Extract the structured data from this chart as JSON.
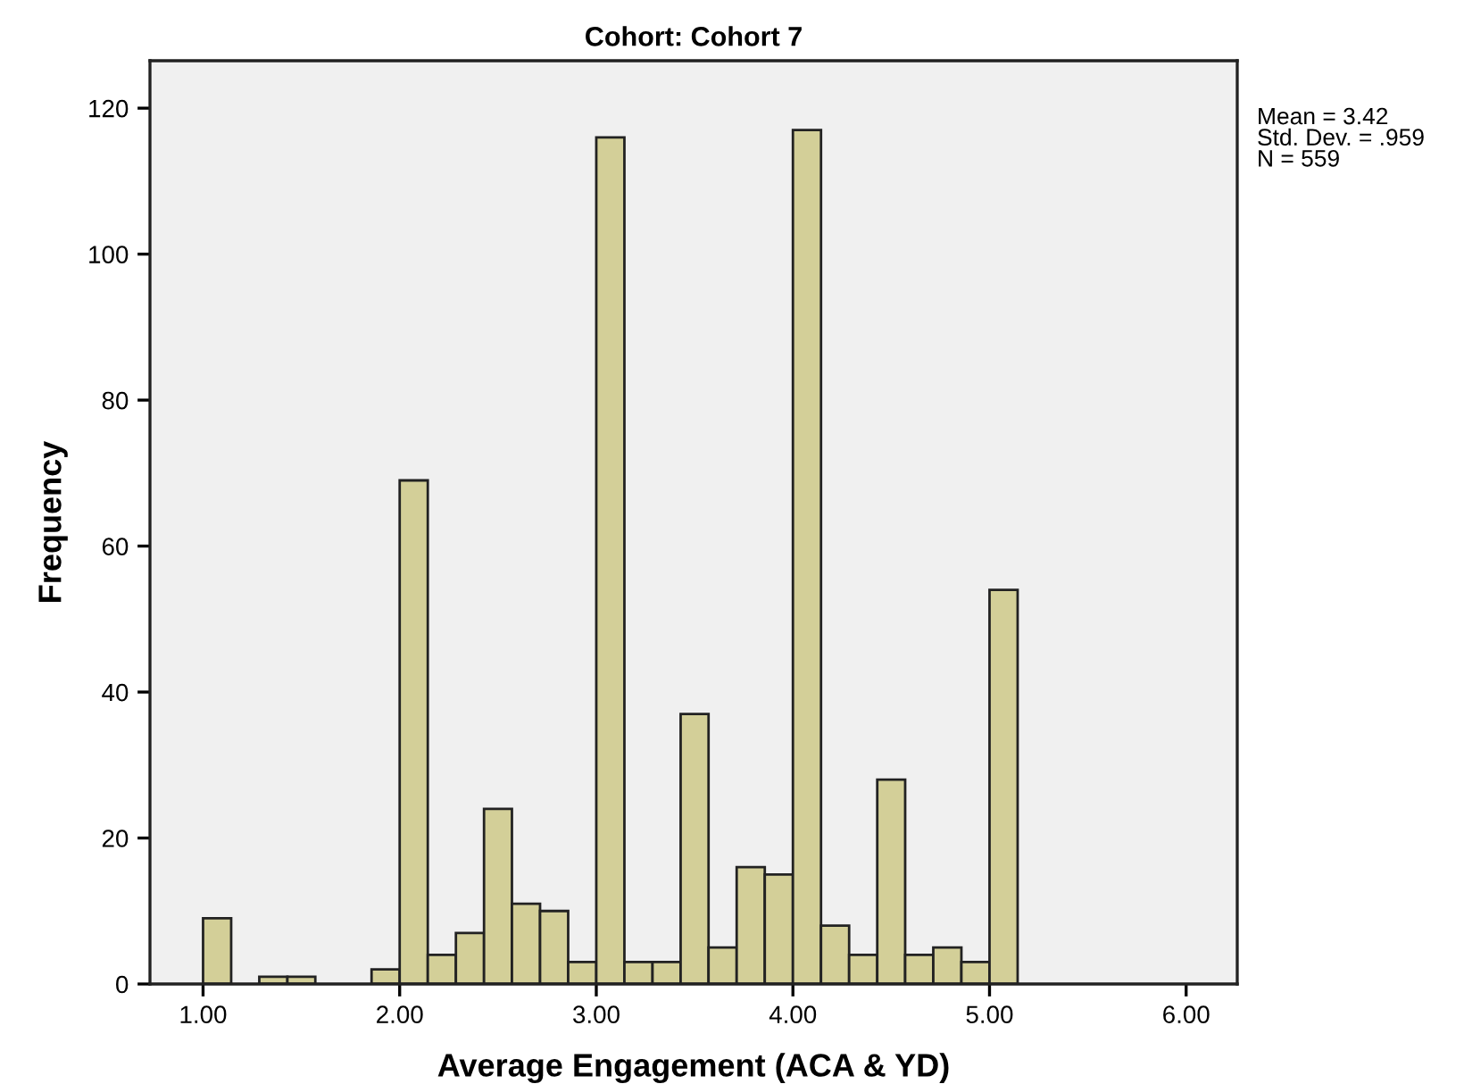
{
  "chart_data": {
    "type": "histogram",
    "title": "Cohort: Cohort 7",
    "xlabel": "Average Engagement (ACA & YD)",
    "ylabel": "Frequency",
    "bins": [
      1.0,
      1.143,
      1.286,
      1.429,
      1.571,
      1.714,
      1.857,
      2.0,
      2.143,
      2.286,
      2.429,
      2.571,
      2.714,
      2.857,
      3.0,
      3.143,
      3.286,
      3.429,
      3.571,
      3.714,
      3.857,
      4.0,
      4.143,
      4.286,
      4.429,
      4.571,
      4.714,
      4.857,
      5.0,
      5.143
    ],
    "values": [
      9,
      0,
      1,
      1,
      0,
      0,
      2,
      69,
      4,
      7,
      24,
      11,
      10,
      3,
      116,
      3,
      3,
      37,
      5,
      16,
      15,
      117,
      8,
      4,
      28,
      4,
      5,
      3,
      54
    ],
    "color": "#d3cf98",
    "xlim": [
      0.73,
      6.26
    ],
    "ylim": [
      0,
      126.5
    ],
    "xticks": [
      {
        "value": 1,
        "label": "1.00"
      },
      {
        "value": 2,
        "label": "2.00"
      },
      {
        "value": 3,
        "label": "3.00"
      },
      {
        "value": 4,
        "label": "4.00"
      },
      {
        "value": 5,
        "label": "5.00"
      },
      {
        "value": 6,
        "label": "6.00"
      }
    ],
    "yticks": [
      0,
      20,
      40,
      60,
      80,
      100,
      120
    ],
    "grid": false,
    "legend": false,
    "annotations": [
      "Mean = 3.42\nStd. Dev. = .959\nN = 559"
    ]
  }
}
